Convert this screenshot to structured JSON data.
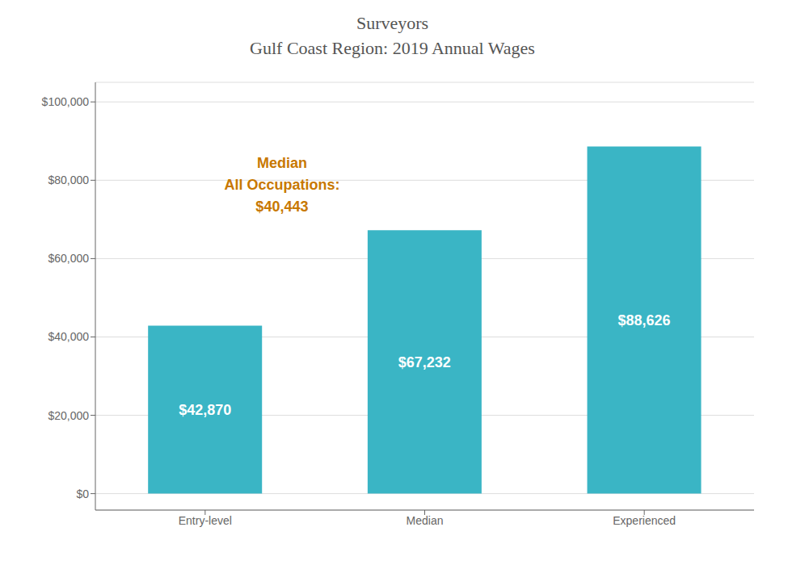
{
  "chart_data": {
    "type": "bar",
    "title": "Surveyors",
    "subtitle": "Gulf Coast Region: 2019 Annual Wages",
    "categories": [
      "Entry-level",
      "Median",
      "Experienced"
    ],
    "values": [
      42870,
      67232,
      88626
    ],
    "value_labels": [
      "$42,870",
      "$67,232",
      "$88,626"
    ],
    "data_labels": true,
    "color": "#3ab5c5",
    "ylim": [
      -4200,
      105000
    ],
    "yticks": [
      {
        "value": 0,
        "label": "$0"
      },
      {
        "value": 20000,
        "label": "$20,000"
      },
      {
        "value": 40000,
        "label": "$40,000"
      },
      {
        "value": 60000,
        "label": "$60,000"
      },
      {
        "value": 80000,
        "label": "$80,000"
      },
      {
        "value": 100000,
        "label": "$100,000"
      }
    ],
    "grid": true,
    "annotation": "Median\nAll Occupations:\n$40,443"
  }
}
